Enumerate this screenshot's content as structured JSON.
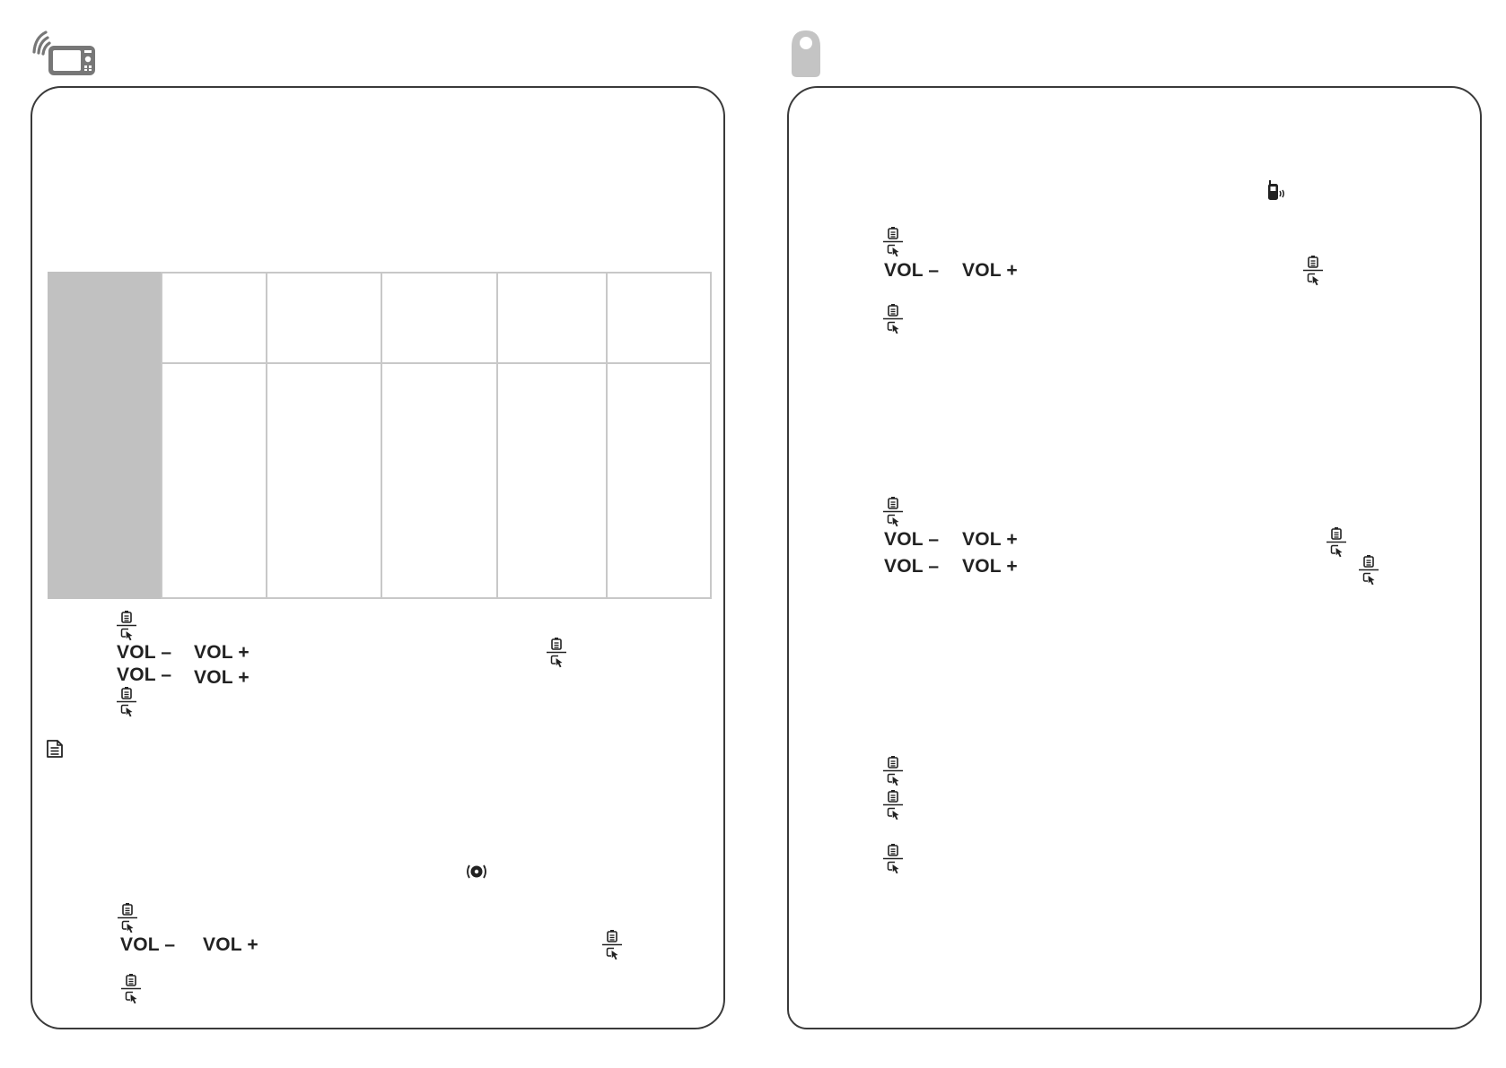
{
  "left_panel": {
    "header_icon": "wireless-monitor-icon",
    "table": {
      "rows": 2,
      "columns": 6,
      "cells": [
        [
          "",
          "",
          "",
          "",
          "",
          ""
        ],
        [
          "",
          "",
          "",
          "",
          "",
          ""
        ]
      ]
    },
    "controls": {
      "vol_minus": "VOL –",
      "vol_plus": "VOL +"
    },
    "note_icon": "note-icon",
    "alarm_icon": "alarm-sensor-icon",
    "menu_icon": "menu-select-icon"
  },
  "right_panel": {
    "header_icon": "baby-unit-icon",
    "vibrate_icon": "vibrate-phone-icon",
    "controls": {
      "vol_minus": "VOL –",
      "vol_plus": "VOL +"
    },
    "menu_icon": "menu-select-icon"
  },
  "colors": {
    "border": "#3a3a3a",
    "table_header": "#c1c1c1",
    "grid": "#c8c8c8",
    "icon_gray": "#777777",
    "unit_gray": "#c4c4c4"
  }
}
